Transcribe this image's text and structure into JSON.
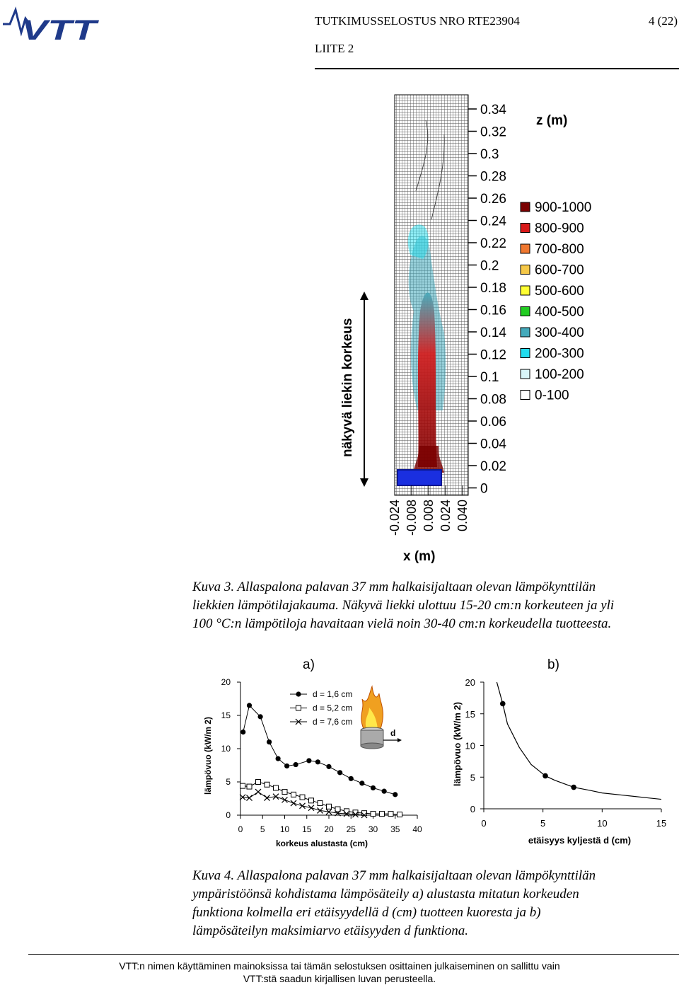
{
  "header": {
    "report_title": "TUTKIMUSSELOSTUS NRO RTE23904",
    "page_number": "4 (22)",
    "appendix": "LIITE 2",
    "logo_text": "VTT",
    "logo_color": "#1f3a8a"
  },
  "figure3": {
    "side_label": "näkyvä liekin korkeus",
    "z_axis_label": "z (m)",
    "x_axis_label": "x (m)",
    "z_ticks": [
      "0.34",
      "0.32",
      "0.3",
      "0.28",
      "0.26",
      "0.24",
      "0.22",
      "0.2",
      "0.18",
      "0.16",
      "0.14",
      "0.12",
      "0.1",
      "0.08",
      "0.06",
      "0.04",
      "0.02",
      "0"
    ],
    "x_ticks": [
      "-0.024",
      "-0.008",
      "0.008",
      "0.024",
      "0.040"
    ],
    "legend": [
      {
        "label": "900-1000",
        "color": "#7a0000"
      },
      {
        "label": "800-900",
        "color": "#d81818"
      },
      {
        "label": "700-800",
        "color": "#f07830"
      },
      {
        "label": "600-700",
        "color": "#f5c848"
      },
      {
        "label": "500-600",
        "color": "#ffff33"
      },
      {
        "label": "400-500",
        "color": "#22cc22"
      },
      {
        "label": "300-400",
        "color": "#44aabb"
      },
      {
        "label": "200-300",
        "color": "#22ddee"
      },
      {
        "label": "100-200",
        "color": "#d8f4f8"
      },
      {
        "label": "0-100",
        "color": "#ffffff"
      }
    ],
    "caption_line1": "Kuva 3. Allaspalona palavan 37 mm halkaisijaltaan olevan lämpökynttilän",
    "caption_line2": "liekkien lämpötilajakauma. Näkyvä liekki ulottuu 15-20 cm:n korkeuteen ja yli",
    "caption_line3": "100 °C:n lämpötiloja havaitaan vielä noin 30-40 cm:n korkeudella tuotteesta."
  },
  "chart_data": [
    {
      "type": "line",
      "panel_label": "a)",
      "xlabel": "korkeus alustasta (cm)",
      "ylabel": "lämpövuo (kW/m 2)",
      "xlim": [
        0,
        40
      ],
      "ylim": [
        0,
        20
      ],
      "x_ticks": [
        "0",
        "5",
        "10",
        "15",
        "20",
        "25",
        "30",
        "35",
        "40"
      ],
      "y_ticks": [
        "20",
        "15",
        "10",
        "5",
        "0"
      ],
      "series": [
        {
          "name": "d = 1,6 cm",
          "marker": "filled-circle",
          "x": [
            0.6,
            2,
            4.5,
            6.5,
            8.5,
            10.5,
            12.5,
            15.5,
            17.5,
            20,
            22.5,
            25,
            27.5,
            30,
            32.5,
            35
          ],
          "y": [
            12.5,
            16.5,
            14.8,
            11,
            8.5,
            7.4,
            7.6,
            8.2,
            8,
            7.3,
            6.4,
            5.5,
            4.8,
            4.1,
            3.6,
            3.1
          ]
        },
        {
          "name": "d = 5,2 cm",
          "marker": "open-square",
          "x": [
            0.5,
            2,
            4,
            6,
            8,
            10,
            12,
            14,
            16,
            18,
            20,
            22,
            24,
            26,
            28,
            30,
            32,
            34,
            36
          ],
          "y": [
            4.4,
            4.3,
            5,
            4.6,
            4.1,
            3.5,
            3.1,
            2.7,
            2.2,
            1.8,
            1.3,
            0.9,
            0.6,
            0.4,
            0.3,
            0.2,
            0.2,
            0.2,
            0.1
          ]
        },
        {
          "name": "d = 7,6 cm",
          "marker": "x",
          "x": [
            0.5,
            2,
            4,
            6,
            8,
            10,
            12,
            14,
            16,
            18,
            20,
            22,
            24,
            26,
            28
          ],
          "y": [
            2.7,
            2.6,
            3.5,
            2.6,
            2.8,
            2.3,
            1.8,
            1.4,
            1.1,
            0.7,
            0.5,
            0.3,
            0.2,
            0.1,
            0
          ]
        }
      ],
      "inset_label": "d"
    },
    {
      "type": "line",
      "panel_label": "b)",
      "xlabel": "etäisyys kyljestä d (cm)",
      "ylabel": "lämpövuo (kW/m 2)",
      "xlim": [
        0,
        15
      ],
      "ylim": [
        0,
        20
      ],
      "x_ticks": [
        "0",
        "5",
        "10",
        "15"
      ],
      "y_ticks": [
        "20",
        "15",
        "10",
        "5",
        "0"
      ],
      "points": {
        "x": [
          1.6,
          5.2,
          7.6
        ],
        "y": [
          16.6,
          5.2,
          3.4
        ]
      },
      "fit_curve": {
        "x": [
          1.1,
          1.6,
          2,
          3,
          4,
          5.2,
          6,
          7.6,
          9,
          10,
          12,
          14,
          15
        ],
        "y": [
          20,
          16.6,
          13.4,
          9.7,
          7,
          5.2,
          4.5,
          3.4,
          2.9,
          2.5,
          2.1,
          1.7,
          1.5
        ]
      }
    }
  ],
  "figure4": {
    "caption_line1": "Kuva 4. Allaspalona palavan 37 mm halkaisijaltaan olevan lämpökynttilän",
    "caption_line2": "ympäristöönsä kohdistama lämpösäteily a) alustasta mitatun korkeuden",
    "caption_line3": "funktiona kolmella eri etäisyydellä d (cm) tuotteen kuoresta ja b)",
    "caption_line4": "lämpösäteilyn maksimiarvo etäisyyden d funktiona."
  },
  "footer": {
    "line1": "VTT:n nimen käyttäminen mainoksissa tai tämän selostuksen osittainen julkaiseminen on sallittu vain",
    "line2": "VTT:stä saadun kirjallisen luvan perusteella."
  }
}
